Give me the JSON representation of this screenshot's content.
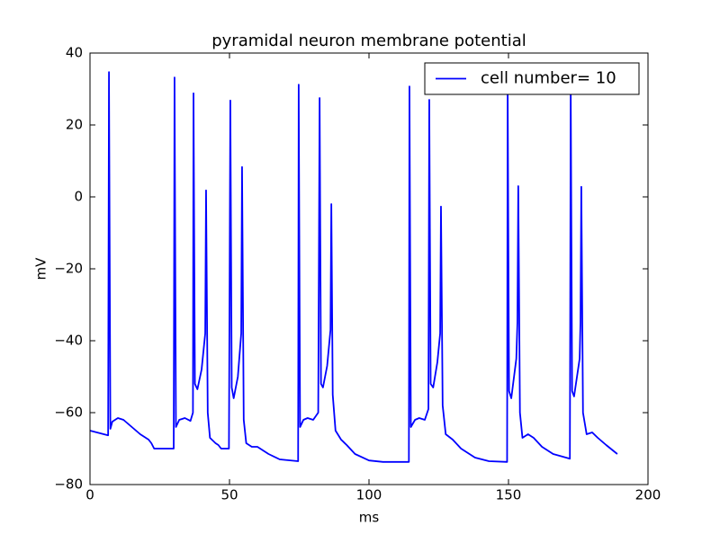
{
  "chart_data": {
    "type": "line",
    "title": "pyramidal neuron membrane potential",
    "xlabel": "ms",
    "ylabel": "mV",
    "x": [
      0,
      6.5,
      6.8,
      7.3,
      8,
      10,
      12,
      15,
      18,
      21,
      22,
      23,
      30,
      30.3,
      30.8,
      32,
      34,
      36,
      36.9,
      37.1,
      37.6,
      38.5,
      40,
      41.3,
      41.6,
      42.2,
      43,
      45,
      46,
      47,
      49.8,
      50.3,
      50.8,
      51.5,
      53,
      54.2,
      54.5,
      55.1,
      56,
      58,
      60,
      64,
      68,
      74.6,
      74.8,
      75.3,
      76.5,
      78,
      80,
      81.8,
      82.3,
      82.8,
      83.5,
      85,
      86.2,
      86.5,
      87,
      88,
      90,
      92,
      95,
      100,
      105,
      114.3,
      114.5,
      115,
      116.5,
      118,
      120,
      121.3,
      121.6,
      122.1,
      123,
      124.5,
      125.5,
      125.8,
      126.4,
      127.5,
      130,
      133,
      138,
      143,
      149.5,
      149.7,
      150.2,
      151,
      152.8,
      153.2,
      153.5,
      154.1,
      155,
      157,
      159,
      162,
      166,
      172,
      172.3,
      172.8,
      173.5,
      175.5,
      175.8,
      176.1,
      176.7,
      178,
      180,
      182,
      185,
      189
    ],
    "series": [
      {
        "name": "cell number= 10",
        "color": "#0000ff",
        "values": [
          -65,
          -66.3,
          34.7,
          -64.5,
          -62.5,
          -61.5,
          -62,
          -64,
          -66,
          -67.5,
          -68.5,
          -70,
          -70,
          33.2,
          -64,
          -62,
          -61.5,
          -62.3,
          -60,
          28.8,
          -52,
          -53.5,
          -48,
          -38,
          1.8,
          -60,
          -67,
          -68.5,
          -69,
          -70,
          -70,
          26.8,
          -53,
          -56,
          -50,
          -38,
          8.3,
          -62,
          -68.5,
          -69.5,
          -69.5,
          -71.5,
          -73,
          -73.5,
          31.2,
          -64,
          -62,
          -61.5,
          -62,
          -60,
          27.5,
          -52,
          -53,
          -47,
          -37,
          -2,
          -55,
          -65,
          -67.5,
          -69,
          -71.5,
          -73.3,
          -73.7,
          -73.7,
          30.7,
          -64,
          -62,
          -61.5,
          -62,
          -59,
          27,
          -52,
          -53,
          -46,
          -38,
          -2.7,
          -58,
          -66,
          -67.5,
          -70,
          -72.5,
          -73.5,
          -73.7,
          30.2,
          -54,
          -56,
          -45,
          -35,
          3,
          -60,
          -67,
          -66,
          -67,
          -69.5,
          -71.5,
          -72.8,
          30.2,
          -54,
          -55.5,
          -45,
          -35,
          2.8,
          -60,
          -66,
          -65.5,
          -67,
          -69,
          -71.5
        ]
      }
    ],
    "xlim": [
      0,
      200
    ],
    "ylim": [
      -80,
      40
    ],
    "xticks": [
      0,
      50,
      100,
      150,
      200
    ],
    "yticks": [
      {
        "value": -80,
        "label": "−80"
      },
      {
        "value": -60,
        "label": "−60"
      },
      {
        "value": -40,
        "label": "−40"
      },
      {
        "value": -20,
        "label": "−20"
      },
      0,
      20,
      40
    ],
    "legend": "upper right"
  }
}
